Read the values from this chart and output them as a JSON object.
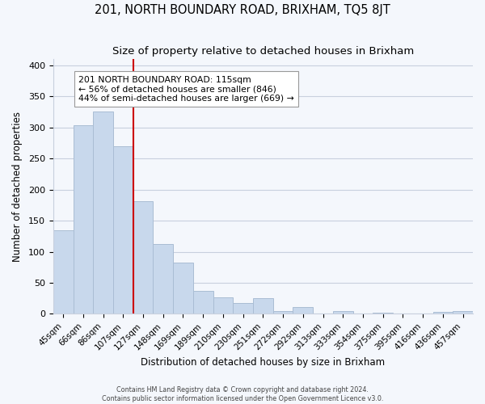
{
  "title": "201, NORTH BOUNDARY ROAD, BRIXHAM, TQ5 8JT",
  "subtitle": "Size of property relative to detached houses in Brixham",
  "xlabel": "Distribution of detached houses by size in Brixham",
  "ylabel": "Number of detached properties",
  "bar_labels": [
    "45sqm",
    "66sqm",
    "86sqm",
    "107sqm",
    "127sqm",
    "148sqm",
    "169sqm",
    "189sqm",
    "210sqm",
    "230sqm",
    "251sqm",
    "272sqm",
    "292sqm",
    "313sqm",
    "333sqm",
    "354sqm",
    "375sqm",
    "395sqm",
    "416sqm",
    "436sqm",
    "457sqm"
  ],
  "bar_values": [
    135,
    303,
    325,
    270,
    181,
    113,
    83,
    37,
    26,
    17,
    25,
    5,
    11,
    0,
    5,
    0,
    2,
    0,
    0,
    3,
    5
  ],
  "bar_color": "#c8d8ec",
  "bar_edge_color": "#aabdd4",
  "vline_x": 3.5,
  "vline_color": "#cc0000",
  "annotation_text": "201 NORTH BOUNDARY ROAD: 115sqm\n← 56% of detached houses are smaller (846)\n44% of semi-detached houses are larger (669) →",
  "annotation_box_facecolor": "#ffffff",
  "annotation_box_edgecolor": "#999999",
  "ylim": [
    0,
    410
  ],
  "yticks": [
    0,
    50,
    100,
    150,
    200,
    250,
    300,
    350,
    400
  ],
  "footer_line1": "Contains HM Land Registry data © Crown copyright and database right 2024.",
  "footer_line2": "Contains public sector information licensed under the Open Government Licence v3.0.",
  "bg_color": "#f4f7fc",
  "plot_bg_color": "#f4f7fc",
  "grid_color": "#c8d0de"
}
